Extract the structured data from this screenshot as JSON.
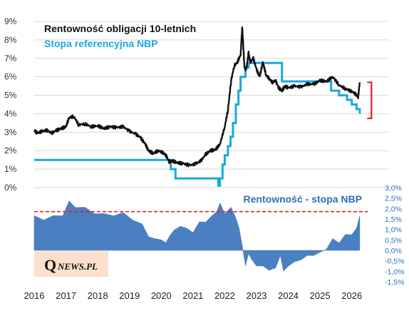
{
  "legend": {
    "yield_label": "Rentowność obligacji 10-letnich",
    "rate_label": "Stopa referencyjna NBP"
  },
  "spread_label": "Rentowność - stopa NBP",
  "logo": {
    "q": "Q",
    "rest": "NEWS.PL"
  },
  "colors": {
    "yield": "#111111",
    "rate": "#19a9df",
    "spread": "#4a7fc1",
    "threshold": "#e41e26",
    "bracket": "#e41e26"
  },
  "chart_data": [
    {
      "type": "line",
      "title": "",
      "xlabel": "",
      "ylabel": "",
      "x_ticks": [
        "2016",
        "2017",
        "2018",
        "2019",
        "2020",
        "2021",
        "2022",
        "2023",
        "2024",
        "2025",
        "2026"
      ],
      "xlim": [
        2016.0,
        2026.5
      ],
      "y_ticks": [
        "0%",
        "1%",
        "2%",
        "3%",
        "4%",
        "5%",
        "6%",
        "7%",
        "8%",
        "9%"
      ],
      "ylim": [
        0,
        9
      ],
      "annotation": {
        "type": "bracket",
        "x": 2026.35,
        "y_range": [
          3.75,
          5.7
        ]
      },
      "series": [
        {
          "name": "Rentowność obligacji 10-letnich",
          "x": [
            2016.0,
            2016.1,
            2016.25,
            2016.4,
            2016.55,
            2016.7,
            2016.85,
            2017.0,
            2017.1,
            2017.25,
            2017.4,
            2017.6,
            2017.8,
            2018.0,
            2018.2,
            2018.4,
            2018.6,
            2018.8,
            2019.0,
            2019.2,
            2019.35,
            2019.5,
            2019.6,
            2019.75,
            2019.9,
            2020.05,
            2020.15,
            2020.25,
            2020.35,
            2020.5,
            2020.7,
            2020.9,
            2021.1,
            2021.25,
            2021.4,
            2021.55,
            2021.7,
            2021.85,
            2022.0,
            2022.1,
            2022.2,
            2022.3,
            2022.4,
            2022.5,
            2022.55,
            2022.62,
            2022.68,
            2022.75,
            2022.8,
            2022.9,
            2023.0,
            2023.1,
            2023.2,
            2023.3,
            2023.4,
            2023.5,
            2023.6,
            2023.7,
            2023.8,
            2023.9,
            2024.0,
            2024.2,
            2024.4,
            2024.6,
            2024.8,
            2025.0,
            2025.2,
            2025.4,
            2025.6,
            2025.8,
            2025.95,
            2026.1,
            2026.2,
            2026.25
          ],
          "y": [
            3.1,
            2.95,
            3.05,
            3.1,
            2.95,
            3.1,
            3.2,
            3.3,
            3.8,
            3.85,
            3.4,
            3.45,
            3.3,
            3.35,
            3.2,
            3.3,
            3.25,
            3.3,
            3.05,
            2.9,
            2.7,
            2.35,
            2.0,
            1.85,
            2.0,
            1.9,
            1.75,
            1.4,
            1.45,
            1.35,
            1.3,
            1.2,
            1.3,
            1.45,
            1.8,
            2.0,
            2.05,
            2.35,
            3.3,
            4.2,
            5.8,
            6.6,
            6.8,
            7.2,
            8.7,
            6.5,
            6.4,
            7.3,
            6.8,
            7.0,
            6.4,
            6.0,
            6.8,
            6.1,
            5.9,
            5.7,
            5.8,
            5.4,
            5.25,
            5.5,
            5.4,
            5.5,
            5.45,
            5.6,
            5.6,
            5.8,
            5.75,
            6.0,
            5.55,
            5.35,
            5.25,
            5.1,
            4.9,
            5.7
          ]
        },
        {
          "name": "Stopa referencyjna NBP",
          "step": true,
          "x": [
            2016.0,
            2020.2,
            2020.3,
            2020.45,
            2021.8,
            2021.85,
            2021.93,
            2022.0,
            2022.1,
            2022.18,
            2022.26,
            2022.35,
            2022.43,
            2022.5,
            2022.65,
            2022.75,
            2023.7,
            2023.8,
            2025.3,
            2025.35,
            2025.5,
            2025.6,
            2025.75,
            2025.85,
            2026.0,
            2026.15,
            2026.25
          ],
          "y": [
            1.5,
            1.5,
            1.0,
            0.5,
            0.1,
            0.5,
            1.25,
            1.75,
            2.25,
            2.75,
            3.5,
            4.5,
            5.25,
            6.0,
            6.5,
            6.75,
            6.75,
            5.75,
            5.75,
            5.25,
            5.25,
            5.0,
            5.0,
            4.75,
            4.5,
            4.25,
            4.0
          ]
        }
      ]
    },
    {
      "type": "area",
      "title": "Rentowność - stopa NBP",
      "xlabel": "",
      "ylabel": "",
      "y_ticks": [
        "3,0%",
        "2,5%",
        "2,0%",
        "1,5%",
        "1,0%",
        "0,5%",
        "0,0%",
        "-0,5%",
        "-1,0%",
        "-1,5%"
      ],
      "ylim": [
        -1.5,
        3.0
      ],
      "threshold": 1.85,
      "series": [
        {
          "name": "Rentowność - stopa NBP",
          "x": [
            2016.0,
            2016.3,
            2016.6,
            2016.9,
            2017.1,
            2017.3,
            2017.6,
            2017.9,
            2018.2,
            2018.5,
            2018.8,
            2019.1,
            2019.4,
            2019.6,
            2019.8,
            2020.0,
            2020.15,
            2020.25,
            2020.4,
            2020.6,
            2020.8,
            2021.0,
            2021.2,
            2021.4,
            2021.6,
            2021.75,
            2021.85,
            2022.0,
            2022.2,
            2022.35,
            2022.45,
            2022.55,
            2022.65,
            2022.75,
            2022.85,
            2023.0,
            2023.2,
            2023.4,
            2023.6,
            2023.75,
            2023.85,
            2024.0,
            2024.2,
            2024.4,
            2024.6,
            2024.8,
            2025.0,
            2025.2,
            2025.4,
            2025.6,
            2025.8,
            2026.0,
            2026.15,
            2026.25
          ],
          "y": [
            1.6,
            1.5,
            1.6,
            1.7,
            2.3,
            2.1,
            2.0,
            1.8,
            1.7,
            1.7,
            1.75,
            1.5,
            1.2,
            0.7,
            0.5,
            0.55,
            0.3,
            0.7,
            0.9,
            1.2,
            1.0,
            0.9,
            1.3,
            1.4,
            1.6,
            1.9,
            2.2,
            1.8,
            2.0,
            1.6,
            1.0,
            0.3,
            -0.8,
            -0.1,
            -0.5,
            -0.7,
            -0.8,
            -0.9,
            -0.9,
            -0.2,
            -1.05,
            -0.7,
            -0.6,
            -0.4,
            -0.3,
            -0.2,
            -0.15,
            0.1,
            0.5,
            0.4,
            0.7,
            0.8,
            1.0,
            1.7
          ]
        }
      ]
    }
  ]
}
